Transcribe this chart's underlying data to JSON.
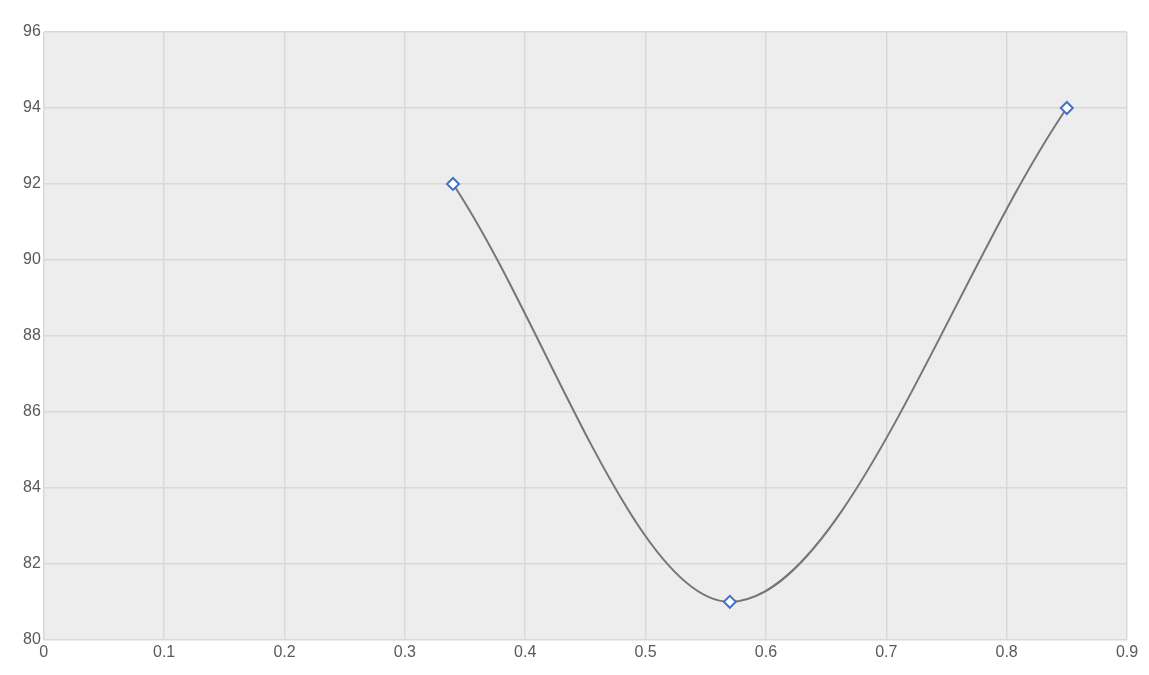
{
  "chart_data": {
    "type": "line",
    "x": [
      0.34,
      0.57,
      0.85
    ],
    "series": [
      {
        "color": "#767676",
        "colors": [
          "#4472c4",
          "#4472c4",
          "#4472c4"
        ],
        "values": [
          92,
          81,
          94
        ]
      }
    ],
    "xlim": [
      0,
      0.9
    ],
    "xticks": [
      0,
      0.1,
      0.2,
      0.3,
      0.4,
      0.5,
      0.6,
      0.7,
      0.8,
      0.9
    ],
    "ylim": [
      80,
      96
    ],
    "yticks": [
      80,
      82,
      84,
      86,
      88,
      90,
      92,
      94,
      96
    ],
    "grid": true,
    "marker": "diamond",
    "line_style": "solid",
    "legend": false
  }
}
